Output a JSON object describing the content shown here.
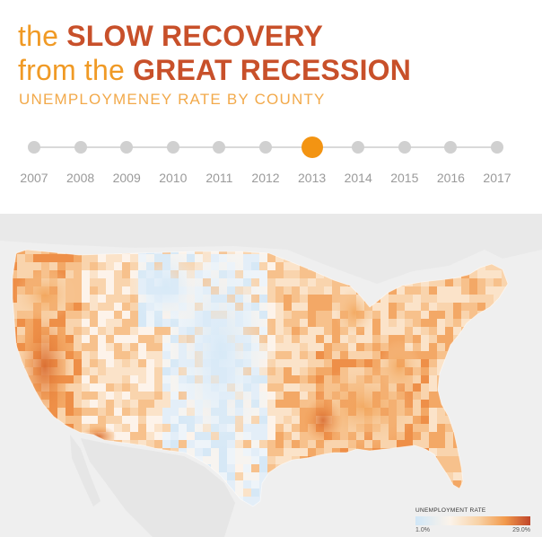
{
  "title": {
    "line1_prefix": "the ",
    "line1_bold": "SLOW RECOVERY",
    "line2_prefix": "from the ",
    "line2_bold": "GREAT RECESSION"
  },
  "subtitle": "UNEMPLOYMENEY RATE BY COUNTY",
  "timeline": {
    "years": [
      "2007",
      "2008",
      "2009",
      "2010",
      "2011",
      "2012",
      "2013",
      "2014",
      "2015",
      "2016",
      "2017"
    ],
    "selected": "2013"
  },
  "legend": {
    "title": "UNEMPLOYMENT RATE",
    "min": "1.0%",
    "max": "29.0%"
  },
  "colors": {
    "title_light": "#f09a25",
    "title_bold": "#c8502a",
    "subtitle": "#f2a94a",
    "timeline_active": "#f39412",
    "timeline_inactive": "#d0d0d0",
    "map_background": "#efefef",
    "low_rate": "#cfe6f7",
    "high_rate": "#c0462a"
  }
}
